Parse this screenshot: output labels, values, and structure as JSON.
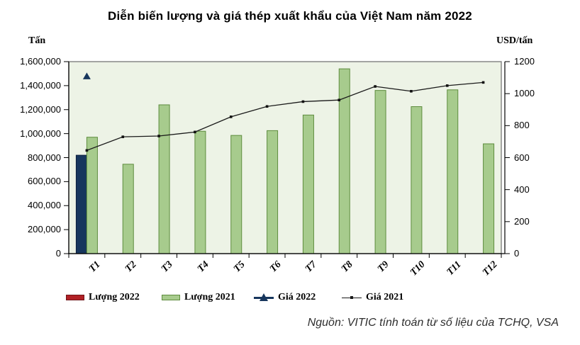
{
  "title": "Diễn biến lượng và giá thép xuất khẩu của Việt Nam năm 2022",
  "source": "Nguồn: VITIC tính toán từ số liệu của TCHQ, VSA",
  "legend": [
    {
      "label": "Lượng 2022",
      "swatch": "bar",
      "color": "#b12025",
      "border": "#6f1418"
    },
    {
      "label": "Lượng 2021",
      "swatch": "bar",
      "color": "#a7cb8d",
      "border": "#5e8c3e"
    },
    {
      "label": "Giá 2022",
      "swatch": "line-triangle",
      "color": "#17365d"
    },
    {
      "label": "Giá 2021",
      "swatch": "line-dot",
      "color": "#1a1a1a"
    }
  ],
  "chart_data": {
    "type": "bar",
    "categories": [
      "T1",
      "T2",
      "T3",
      "T4",
      "T5",
      "T6",
      "T7",
      "T8",
      "T9",
      "T10",
      "T11",
      "T12"
    ],
    "series": [
      {
        "name": "Lượng 2022",
        "kind": "bar",
        "axis": "left",
        "color": "#17365d",
        "border": "#0d1f3c",
        "values": [
          820000,
          null,
          null,
          null,
          null,
          null,
          null,
          null,
          null,
          null,
          null,
          null
        ]
      },
      {
        "name": "Lượng 2021",
        "kind": "bar",
        "axis": "left",
        "color": "#a7cb8d",
        "border": "#5e8c3e",
        "values": [
          970000,
          745000,
          1240000,
          1020000,
          985000,
          1025000,
          1155000,
          1540000,
          1360000,
          1225000,
          1365000,
          915000
        ]
      },
      {
        "name": "Giá 2022",
        "kind": "point-triangle",
        "axis": "right",
        "color": "#17365d",
        "values": [
          1110,
          null,
          null,
          null,
          null,
          null,
          null,
          null,
          null,
          null,
          null,
          null
        ]
      },
      {
        "name": "Giá 2021",
        "kind": "line",
        "axis": "right",
        "color": "#1a1a1a",
        "marker": "square",
        "values": [
          645,
          730,
          735,
          760,
          855,
          920,
          950,
          960,
          1045,
          1015,
          1050,
          1070
        ]
      }
    ],
    "left_axis": {
      "label": "Tấn",
      "min": 0,
      "max": 1600000,
      "step": 200000,
      "tick_labels": [
        "0",
        "200,000",
        "400,000",
        "600,000",
        "800,000",
        "1,000,000",
        "1,200,000",
        "1,400,000",
        "1,600,000"
      ]
    },
    "right_axis": {
      "label": "USD/tấn",
      "min": 0,
      "max": 1200,
      "step": 200,
      "tick_labels": [
        "0",
        "200",
        "400",
        "600",
        "800",
        "1000",
        "1200"
      ]
    },
    "plot_bg": "#edf3e6",
    "frame_color": "#808080",
    "grid": false,
    "legend_position": "bottom"
  }
}
